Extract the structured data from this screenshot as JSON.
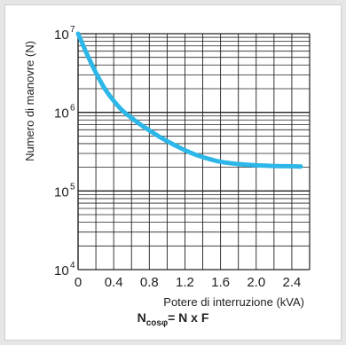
{
  "colors": {
    "background": "#e6e6e6",
    "plot_background": "#ffffff",
    "grid": "#222222",
    "curve": "#2db7e8"
  },
  "chart_data": {
    "type": "line",
    "title": "",
    "xlabel": "Potere di interruzione (kVA)",
    "ylabel": "Numero di manovre  (N)",
    "xlim": [
      0,
      2.6
    ],
    "ylim": [
      10000,
      10000000
    ],
    "yscale": "log",
    "grid": true,
    "x_ticks": [
      {
        "value": 0,
        "label": "0"
      },
      {
        "value": 0.4,
        "label": "0.4"
      },
      {
        "value": 0.8,
        "label": "0.8"
      },
      {
        "value": 1.2,
        "label": "1.2"
      },
      {
        "value": 1.6,
        "label": "1.6"
      },
      {
        "value": 2.0,
        "label": "2.0"
      },
      {
        "value": 2.4,
        "label": "2.4"
      }
    ],
    "y_ticks": [
      {
        "value": 10000,
        "base": "10",
        "exp": "4"
      },
      {
        "value": 100000,
        "base": "10",
        "exp": "5"
      },
      {
        "value": 1000000,
        "base": "10",
        "exp": "6"
      },
      {
        "value": 10000000,
        "base": "10",
        "exp": "7"
      }
    ],
    "series": [
      {
        "x": [
          0,
          0.1,
          0.2,
          0.3,
          0.4,
          0.5,
          0.6,
          0.7,
          0.8,
          0.9,
          1.0,
          1.1,
          1.2,
          1.3,
          1.4,
          1.5,
          1.6,
          1.8,
          2.0,
          2.2,
          2.4,
          2.5
        ],
        "y": [
          10000000,
          5500000,
          3200000,
          2000000,
          1400000,
          1050000,
          850000,
          700000,
          590000,
          500000,
          430000,
          375000,
          330000,
          295000,
          270000,
          250000,
          235000,
          220000,
          212000,
          208000,
          206000,
          205000
        ]
      }
    ]
  },
  "formula": {
    "main": "N",
    "subscript": "cosφ",
    "rest": "= N x F"
  }
}
